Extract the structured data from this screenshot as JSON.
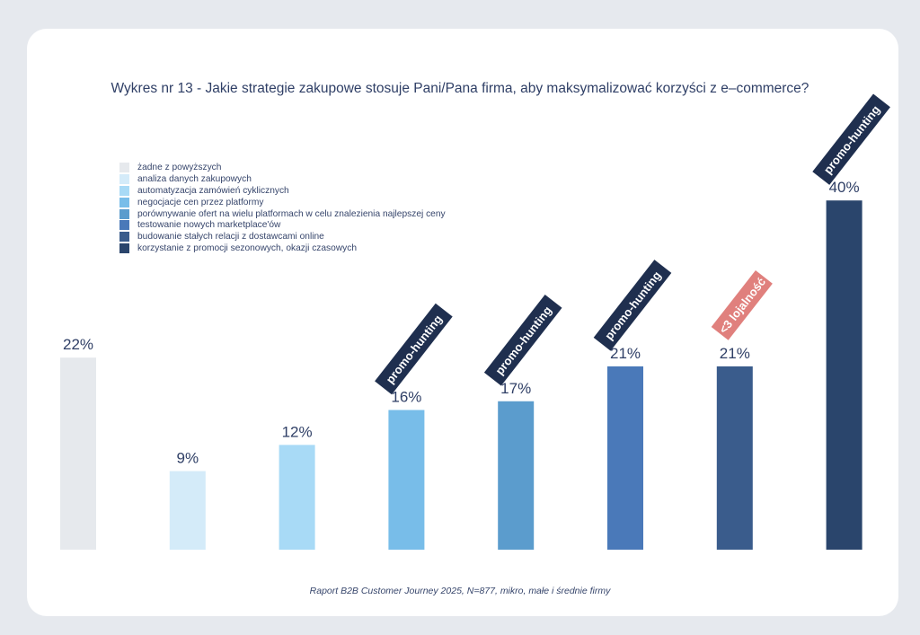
{
  "colors": {
    "background": "#e6e9ee",
    "card": "#ffffff",
    "text": "#2f3f66",
    "tag_dark": "#1f2f4f",
    "tag_alert": "#e0807d"
  },
  "chart_data": {
    "type": "bar",
    "title": "Wykres nr 13 - Jakie strategie zakupowe stosuje Pani/Pana firma, aby maksymalizować korzyści z e–commerce?",
    "xlabel": "",
    "ylabel": "",
    "ylim": [
      0,
      40
    ],
    "grid": false,
    "legend_position": "top-left",
    "categories": [
      "żadne z powyższych",
      "analiza danych zakupowych",
      "automatyzacja zamówień cyklicznych",
      "negocjacje cen przez platformy",
      "porównywanie ofert na wielu platformach w celu znalezienia najlepszej ceny",
      "testowanie nowych marketplace'ów",
      "budowanie stałych relacji z dostawcami online",
      "korzystanie z promocji sezonowych, okazji czasowych"
    ],
    "values": [
      22,
      9,
      12,
      16,
      17,
      21,
      21,
      40
    ],
    "value_labels": [
      "22%",
      "9%",
      "12%",
      "16%",
      "17%",
      "21%",
      "21%",
      "40%"
    ],
    "colors": [
      "#e6e9ed",
      "#d4ebf9",
      "#a8daf6",
      "#78bde9",
      "#5b9ccd",
      "#4a79b9",
      "#3a5c8c",
      "#2a456c"
    ],
    "annotations": [
      {
        "bar": 3,
        "text": "promo-hunting",
        "style": "dark"
      },
      {
        "bar": 4,
        "text": "promo-hunting",
        "style": "dark"
      },
      {
        "bar": 5,
        "text": "promo-hunting",
        "style": "dark"
      },
      {
        "bar": 6,
        "text": "<3 lojalność",
        "style": "alert"
      },
      {
        "bar": 7,
        "text": "promo-hunting",
        "style": "dark"
      }
    ]
  },
  "source": "Raport B2B Customer Journey 2025, N=877, mikro, małe i średnie firmy"
}
